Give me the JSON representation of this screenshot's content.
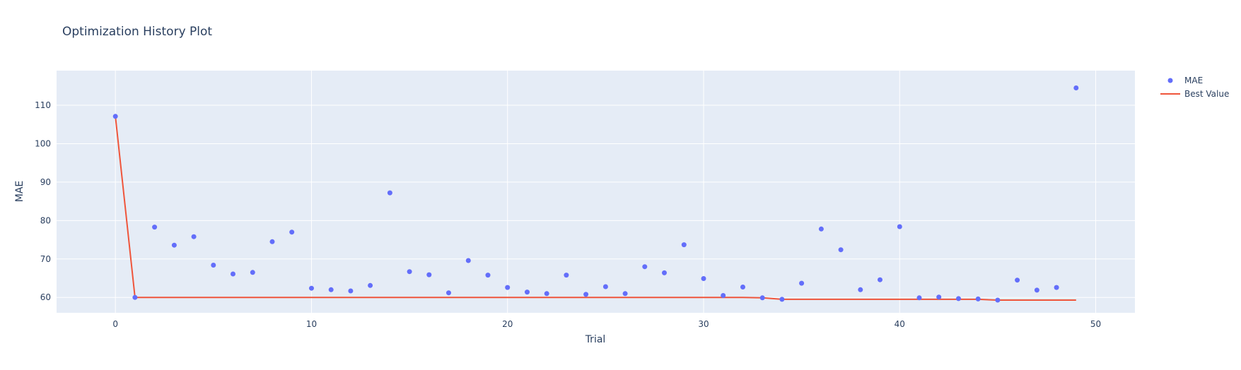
{
  "chart_data": {
    "type": "scatter",
    "title": "Optimization History Plot",
    "xlabel": "Trial",
    "ylabel": "MAE",
    "xlim": [
      -3,
      52
    ],
    "ylim": [
      56,
      119
    ],
    "xticks": [
      0,
      10,
      20,
      30,
      40,
      50
    ],
    "yticks": [
      60,
      70,
      80,
      90,
      100,
      110
    ],
    "grid": true,
    "legend_position": "top-right",
    "series": [
      {
        "name": "MAE",
        "mode": "markers",
        "color": "#636efa",
        "x": [
          0,
          1,
          2,
          3,
          4,
          5,
          6,
          7,
          8,
          9,
          10,
          11,
          12,
          13,
          14,
          15,
          16,
          17,
          18,
          19,
          20,
          21,
          22,
          23,
          24,
          25,
          26,
          27,
          28,
          29,
          30,
          31,
          32,
          33,
          34,
          35,
          36,
          37,
          38,
          39,
          40,
          41,
          42,
          43,
          44,
          45,
          46,
          47,
          48,
          49
        ],
        "y": [
          107.1,
          60.0,
          78.3,
          73.6,
          75.8,
          68.4,
          66.1,
          66.5,
          74.5,
          77.0,
          62.4,
          62.0,
          61.7,
          63.1,
          87.2,
          66.7,
          65.9,
          61.2,
          69.6,
          65.8,
          62.6,
          61.4,
          61.0,
          65.8,
          60.8,
          62.8,
          61.0,
          68.0,
          66.4,
          73.7,
          64.9,
          60.5,
          62.7,
          59.9,
          59.5,
          63.7,
          77.8,
          72.4,
          62.0,
          64.6,
          78.4,
          59.9,
          60.1,
          59.7,
          59.6,
          59.3,
          64.5,
          61.9,
          62.6,
          114.5
        ]
      },
      {
        "name": "Best Value",
        "mode": "line",
        "color": "#ef553b",
        "x": [
          0,
          1,
          2,
          3,
          4,
          5,
          6,
          7,
          8,
          9,
          10,
          11,
          12,
          13,
          14,
          15,
          16,
          17,
          18,
          19,
          20,
          21,
          22,
          23,
          24,
          25,
          26,
          27,
          28,
          29,
          30,
          31,
          32,
          33,
          34,
          35,
          36,
          37,
          38,
          39,
          40,
          41,
          42,
          43,
          44,
          45,
          46,
          47,
          48,
          49
        ],
        "y": [
          107.1,
          60.0,
          60.0,
          60.0,
          60.0,
          60.0,
          60.0,
          60.0,
          60.0,
          60.0,
          60.0,
          60.0,
          60.0,
          60.0,
          60.0,
          60.0,
          60.0,
          60.0,
          60.0,
          60.0,
          60.0,
          60.0,
          60.0,
          60.0,
          60.0,
          60.0,
          60.0,
          60.0,
          60.0,
          60.0,
          60.0,
          60.0,
          60.0,
          59.9,
          59.5,
          59.5,
          59.5,
          59.5,
          59.5,
          59.5,
          59.5,
          59.5,
          59.5,
          59.5,
          59.5,
          59.3,
          59.3,
          59.3,
          59.3,
          59.3
        ]
      }
    ],
    "colors": {
      "plot_bg": "#e5ecf6",
      "grid": "#ffffff",
      "text": "#2a3f5f"
    }
  }
}
